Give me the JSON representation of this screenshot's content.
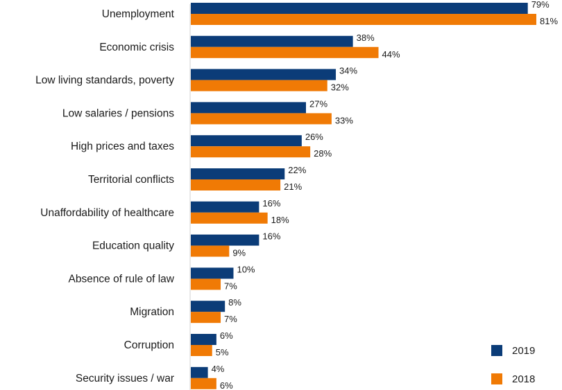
{
  "chart_data": {
    "type": "bar",
    "orientation": "horizontal",
    "categories": [
      "Unemployment",
      "Economic crisis",
      "Low living standards, poverty",
      "Low salaries / pensions",
      "High prices and taxes",
      "Territorial conflicts",
      "Unaffordability of healthcare",
      "Education quality",
      "Absence of rule of law",
      "Migration",
      "Corruption",
      "Security issues / war"
    ],
    "series": [
      {
        "name": "2019",
        "color": "#0b3c78",
        "values": [
          79,
          38,
          34,
          27,
          26,
          22,
          16,
          16,
          10,
          8,
          6,
          4
        ]
      },
      {
        "name": "2018",
        "color": "#f07a05",
        "values": [
          81,
          44,
          32,
          33,
          28,
          21,
          18,
          9,
          7,
          7,
          5,
          6
        ]
      }
    ],
    "value_suffix": "%",
    "xlim": [
      0,
      81
    ],
    "grid": false,
    "legend_position": "bottom-right"
  }
}
